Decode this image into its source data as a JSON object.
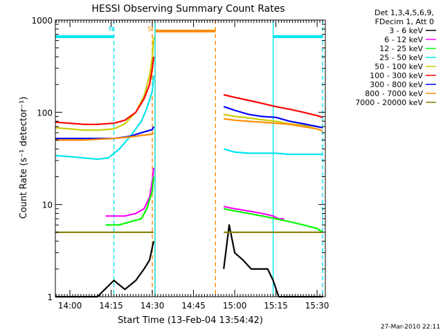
{
  "chart_data": {
    "type": "line",
    "title": "HESSI Observing Summary Count Rates",
    "xlabel": "Start Time (13-Feb-04 13:54:42)",
    "ylabel": "Count Rate (s⁻¹ detector⁻¹)",
    "yscale": "log",
    "ylim": [
      1,
      1000
    ],
    "xlim": [
      "13:54:42",
      "15:33:00"
    ],
    "x_ticks": [
      "14:00",
      "14:15",
      "14:30",
      "14:45",
      "15:00",
      "15:15",
      "15:30"
    ],
    "y_ticks": [
      "1",
      "10",
      "100",
      "1000"
    ],
    "legend_header": [
      "Det 1,3,4,5,6,9,",
      "FDecim 1, Att 0"
    ],
    "legend_position": "right",
    "date_stamp": "27-Mar-2010 22:11",
    "annotations": [
      {
        "label": "N",
        "time": "14:16",
        "color": "#00e5ee"
      },
      {
        "label": "S",
        "time": "14:30",
        "color": "#ff8c00"
      }
    ],
    "vertical_lines": [
      {
        "time": "14:16",
        "color": "#00e5ee",
        "style": "dashed"
      },
      {
        "time": "14:30",
        "color": "#ff8c00",
        "style": "dashed"
      },
      {
        "time": "14:31",
        "color": "#ff8c00",
        "style": "solid"
      },
      {
        "time": "14:31",
        "color": "#00e5ee",
        "style": "solid"
      },
      {
        "time": "14:53",
        "color": "#ff8c00",
        "style": "dashed"
      },
      {
        "time": "15:14",
        "color": "#00e5ee",
        "style": "solid"
      },
      {
        "time": "15:32",
        "color": "#00e5ee",
        "style": "dashed"
      }
    ],
    "state_bars": [
      {
        "from": "13:54:42",
        "to": "14:16",
        "color": "#00e5ee",
        "value": 660
      },
      {
        "from": "15:14",
        "to": "15:32",
        "color": "#00e5ee",
        "value": 660
      },
      {
        "from": "14:31",
        "to": "14:53",
        "color": "#ff8c00",
        "value": 760
      }
    ],
    "series": [
      {
        "name": "3 - 6 keV",
        "color": "#000000",
        "segments": [
          {
            "x": [
              "13:54:42",
              "14:04",
              "14:10",
              "14:16",
              "14:20",
              "14:24",
              "14:27",
              "14:29",
              "14:30:30"
            ],
            "y": [
              1,
              1,
              1,
              1.5,
              1.2,
              1.5,
              2,
              2.5,
              4
            ]
          },
          {
            "x": [
              "14:56",
              "14:58",
              "15:00",
              "15:03",
              "15:06",
              "15:09",
              "15:12",
              "15:14",
              "15:16",
              "15:20",
              "15:25",
              "15:30",
              "15:32"
            ],
            "y": [
              2,
              6,
              3,
              2.5,
              2,
              2,
              2,
              1.5,
              1,
              1,
              1,
              1,
              1
            ]
          }
        ]
      },
      {
        "name": "6 - 12 keV",
        "color": "#ff00ff",
        "segments": [
          {
            "x": [
              "14:13",
              "14:16",
              "14:20",
              "14:24",
              "14:27",
              "14:29",
              "14:30",
              "14:30:30"
            ],
            "y": [
              7.5,
              7.5,
              7.5,
              8,
              9,
              12,
              18,
              25
            ]
          },
          {
            "x": [
              "14:56",
              "15:00",
              "15:05",
              "15:10",
              "15:14",
              "15:16",
              "15:18"
            ],
            "y": [
              9.5,
              9,
              8.5,
              8,
              7.5,
              7,
              7
            ]
          }
        ]
      },
      {
        "name": "12 - 25 keV",
        "color": "#00ff00",
        "segments": [
          {
            "x": [
              "14:13",
              "14:18",
              "14:22",
              "14:26",
              "14:28",
              "14:30",
              "14:30:30"
            ],
            "y": [
              6,
              6,
              6.5,
              7,
              9,
              14,
              20
            ]
          },
          {
            "x": [
              "14:56",
              "15:00",
              "15:05",
              "15:10",
              "15:15",
              "15:20",
              "15:25",
              "15:30",
              "15:32"
            ],
            "y": [
              9,
              8.5,
              8,
              7.5,
              7,
              6.5,
              6,
              5.5,
              5
            ]
          }
        ]
      },
      {
        "name": "25 - 50 keV",
        "color": "#00e5ee",
        "segments": [
          {
            "x": [
              "13:54:42",
              "14:00",
              "14:05",
              "14:10",
              "14:14",
              "14:18",
              "14:22",
              "14:26",
              "14:28",
              "14:30",
              "14:30:30"
            ],
            "y": [
              34,
              33,
              32,
              31,
              32,
              40,
              55,
              80,
              110,
              170,
              250
            ]
          },
          {
            "x": [
              "14:56",
              "15:00",
              "15:05",
              "15:10",
              "15:15",
              "15:20",
              "15:25",
              "15:30",
              "15:32"
            ],
            "y": [
              40,
              37,
              36,
              36,
              36,
              35,
              35,
              35,
              35
            ]
          }
        ]
      },
      {
        "name": "50 - 100 keV",
        "color": "#cccc00",
        "segments": [
          {
            "x": [
              "13:54:42",
              "14:00",
              "14:05",
              "14:10",
              "14:16",
              "14:20",
              "14:24",
              "14:27",
              "14:29",
              "14:30",
              "14:30:30"
            ],
            "y": [
              68,
              66,
              64,
              64,
              66,
              75,
              100,
              150,
              250,
              400,
              650
            ]
          },
          {
            "x": [
              "14:56",
              "15:00",
              "15:05",
              "15:10",
              "15:15",
              "15:20",
              "15:25",
              "15:30",
              "15:32"
            ],
            "y": [
              95,
              90,
              87,
              83,
              80,
              75,
              72,
              70,
              68
            ]
          }
        ]
      },
      {
        "name": "100 - 300 keV",
        "color": "#ff0000",
        "segments": [
          {
            "x": [
              "13:54:42",
              "14:00",
              "14:05",
              "14:10",
              "14:16",
              "14:20",
              "14:24",
              "14:27",
              "14:29",
              "14:30",
              "14:30:30"
            ],
            "y": [
              78,
              76,
              74,
              74,
              76,
              82,
              100,
              140,
              200,
              300,
              400
            ]
          },
          {
            "x": [
              "14:56",
              "15:00",
              "15:05",
              "15:10",
              "15:15",
              "15:20",
              "15:25",
              "15:30",
              "15:32"
            ],
            "y": [
              155,
              145,
              135,
              125,
              115,
              108,
              100,
              92,
              88
            ]
          }
        ]
      },
      {
        "name": "300 - 800 keV",
        "color": "#0000ff",
        "segments": [
          {
            "x": [
              "13:54:42",
              "14:05",
              "14:16",
              "14:22",
              "14:26",
              "14:30",
              "14:30:30"
            ],
            "y": [
              52,
              52,
              52,
              55,
              60,
              65,
              70
            ]
          },
          {
            "x": [
              "14:56",
              "15:00",
              "15:05",
              "15:10",
              "15:15",
              "15:20",
              "15:25",
              "15:30",
              "15:32"
            ],
            "y": [
              115,
              105,
              95,
              90,
              88,
              80,
              75,
              70,
              68
            ]
          }
        ]
      },
      {
        "name": "800 - 7000 keV",
        "color": "#ff8c00",
        "segments": [
          {
            "x": [
              "13:54:42",
              "14:05",
              "14:16",
              "14:22",
              "14:26",
              "14:30",
              "14:30:30"
            ],
            "y": [
              50,
              50,
              52,
              54,
              56,
              58,
              60
            ]
          },
          {
            "x": [
              "14:56",
              "15:00",
              "15:05",
              "15:10",
              "15:15",
              "15:20",
              "15:25",
              "15:30",
              "15:32"
            ],
            "y": [
              85,
              82,
              80,
              78,
              76,
              74,
              70,
              66,
              63
            ]
          }
        ]
      },
      {
        "name": "7000 - 20000 keV",
        "color": "#808000",
        "segments": [
          {
            "x": [
              "13:54:42",
              "14:05",
              "14:16",
              "14:22",
              "14:26",
              "14:30",
              "14:30:30"
            ],
            "y": [
              5,
              5,
              5,
              5,
              5,
              5,
              5
            ]
          },
          {
            "x": [
              "14:56",
              "15:00",
              "15:05",
              "15:10",
              "15:15",
              "15:20",
              "15:25",
              "15:30",
              "15:32"
            ],
            "y": [
              5,
              5,
              5,
              5,
              5,
              5,
              5,
              5,
              5
            ]
          }
        ]
      }
    ]
  }
}
